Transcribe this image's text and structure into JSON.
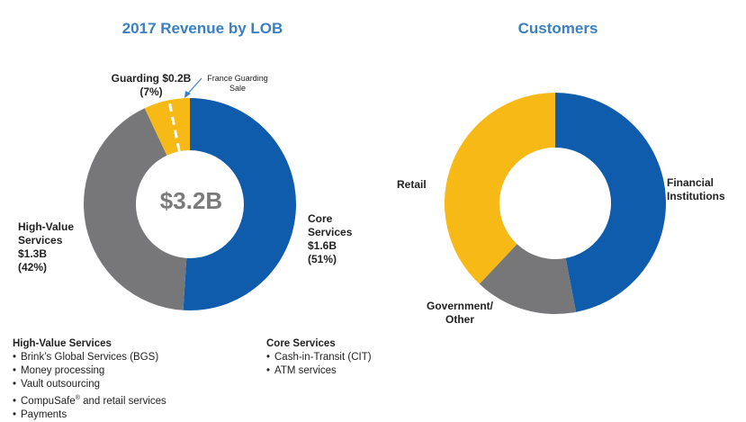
{
  "chart_data": [
    {
      "type": "pie",
      "title": "2017 Revenue by LOB",
      "center_label": "$3.2B",
      "slices": [
        {
          "name": "Core Services",
          "value": 51,
          "color": "#0e5cab",
          "label_lines": [
            "Core",
            "Services",
            "$1.6B",
            "(51%)"
          ]
        },
        {
          "name": "High-Value Services",
          "value": 42,
          "color": "#77777a",
          "label_lines": [
            "High-Value",
            "Services",
            "$1.3B",
            "(42%)"
          ]
        },
        {
          "name": "Guarding",
          "value": 7,
          "color": "#f7b916",
          "label_lines": [
            "Guarding $0.2B",
            "(7%)"
          ]
        }
      ],
      "annotation": {
        "lines": [
          "France Guarding",
          "Sale"
        ]
      }
    },
    {
      "type": "pie",
      "title": "Customers",
      "slices": [
        {
          "name": "Financial Institutions",
          "value": 47,
          "color": "#0e5cab",
          "label_lines": [
            "Financial",
            "Institutions"
          ]
        },
        {
          "name": "Government/ Other",
          "value": 15,
          "color": "#77777a",
          "label_lines": [
            "Government/",
            "Other"
          ]
        },
        {
          "name": "Retail",
          "value": 38,
          "color": "#f7b916",
          "label_lines": [
            "Retail"
          ]
        }
      ]
    }
  ],
  "lists": {
    "high_value": {
      "heading": "High-Value Services",
      "items": [
        "Brink’s Global Services (BGS)",
        "Money processing",
        "Vault outsourcing",
        "CompuSafe",
        "Payments"
      ],
      "item4_suffix": " and retail services",
      "registered_mark": "®"
    },
    "core": {
      "heading": "Core Services",
      "items": [
        "Cash-in-Transit (CIT)",
        "ATM services"
      ]
    }
  }
}
